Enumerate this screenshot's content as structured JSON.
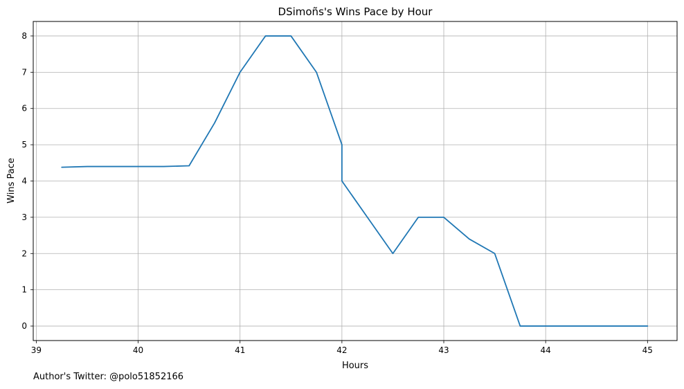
{
  "chart_data": {
    "type": "line",
    "title": "DSimoñs's Wins Pace by Hour",
    "xlabel": "Hours",
    "ylabel": "Wins Pace",
    "xlim": [
      38.97,
      45.29
    ],
    "ylim": [
      -0.4,
      8.4
    ],
    "xticks": [
      39,
      40,
      41,
      42,
      43,
      44,
      45
    ],
    "yticks": [
      0,
      1,
      2,
      3,
      4,
      5,
      6,
      7,
      8
    ],
    "grid": true,
    "series": [
      {
        "color": "#1f77b4",
        "x": [
          39.25,
          39.5,
          39.75,
          40.0,
          40.25,
          40.5,
          40.75,
          41.0,
          41.25,
          41.5,
          41.75,
          42.0,
          42.0,
          42.25,
          42.5,
          42.75,
          43.0,
          43.25,
          43.5,
          43.75,
          44.0,
          44.25,
          44.5,
          44.75,
          45.0
        ],
        "y": [
          4.38,
          4.4,
          4.4,
          4.4,
          4.4,
          4.42,
          5.6,
          7.0,
          8.0,
          8.0,
          7.0,
          5.0,
          4.0,
          3.0,
          2.0,
          3.0,
          3.0,
          2.4,
          2.0,
          0.0,
          0.0,
          0.0,
          0.0,
          0.0,
          0.0
        ]
      }
    ]
  },
  "footer": {
    "text": "Author's Twitter: @polo51852166"
  }
}
